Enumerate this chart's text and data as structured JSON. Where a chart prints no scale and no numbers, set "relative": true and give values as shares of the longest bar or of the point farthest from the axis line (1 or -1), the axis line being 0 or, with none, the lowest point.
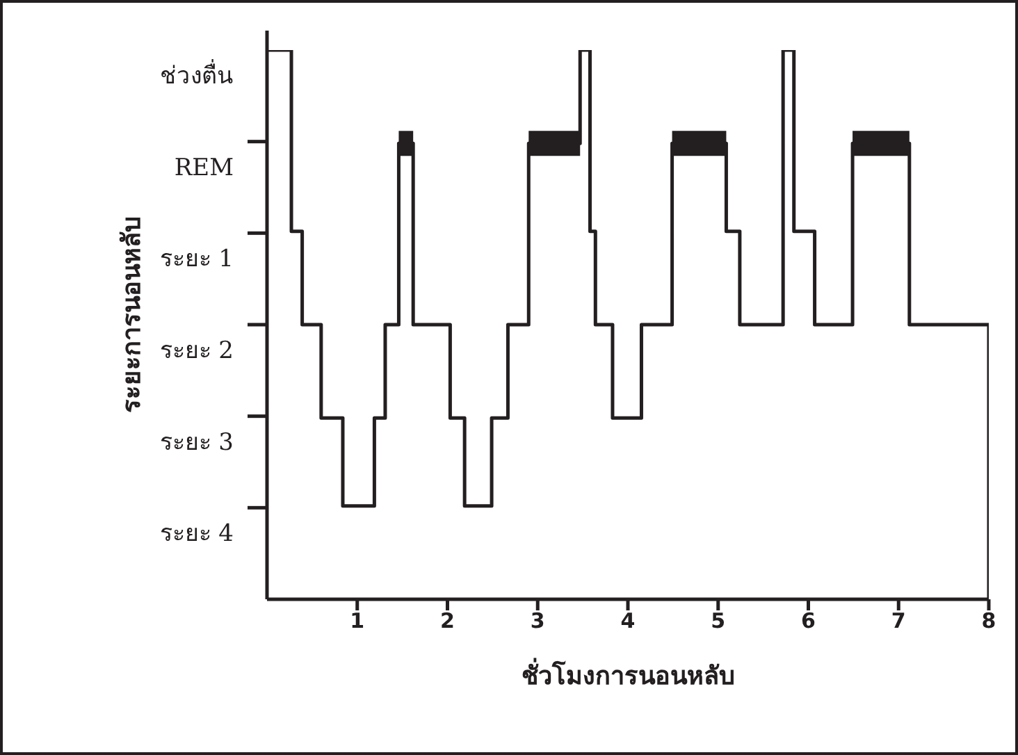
{
  "chart_data": {
    "type": "step",
    "xlabel": "ชั่วโมงการนอนหลับ",
    "ylabel": "ระยะการนอนหลับ",
    "xlim": [
      0,
      8
    ],
    "xticks": [
      1,
      2,
      3,
      4,
      5,
      6,
      7,
      8
    ],
    "relative": true,
    "annotations": [
      "ช่วงตื่น",
      "REM",
      "ระยะ 1",
      "ระยะ 2",
      "ระยะ 3",
      "ระยะ 4"
    ],
    "grid": false,
    "marker": "none",
    "line_style": "solid",
    "series": [
      {
        "color": "#231f20",
        "x": [
          0,
          0.27,
          0.39,
          0.6,
          0.84,
          1.19,
          1.31,
          1.46,
          1.62,
          2.03,
          2.19,
          2.49,
          2.67,
          2.9,
          3.47,
          3.58,
          3.64,
          3.83,
          4.15,
          4.49,
          5.09,
          5.24,
          5.72,
          5.84,
          6.07,
          6.49,
          7.12,
          8
        ],
        "values": [
          1,
          0.67,
          0.5,
          0.33,
          0.17,
          0.33,
          0.5,
          0.83,
          0.5,
          0.33,
          0.17,
          0.33,
          0.5,
          0.83,
          1,
          0.67,
          0.5,
          0.33,
          0.5,
          0.83,
          0.67,
          0.5,
          1,
          0.67,
          0.5,
          0.83,
          0.5,
          0
        ]
      },
      {
        "type": "line",
        "color": "#231f20",
        "x": [
          1.46,
          1.62
        ],
        "values": [
          0.83,
          0.83
        ]
      },
      {
        "type": "line",
        "color": "#231f20",
        "x": [
          2.9,
          3.47
        ],
        "values": [
          0.83,
          0.83
        ]
      },
      {
        "type": "line",
        "color": "#231f20",
        "x": [
          4.49,
          5.09
        ],
        "values": [
          0.83,
          0.83
        ]
      },
      {
        "type": "line",
        "color": "#231f20",
        "x": [
          6.49,
          7.12
        ],
        "values": [
          0.83,
          0.83
        ]
      }
    ]
  }
}
